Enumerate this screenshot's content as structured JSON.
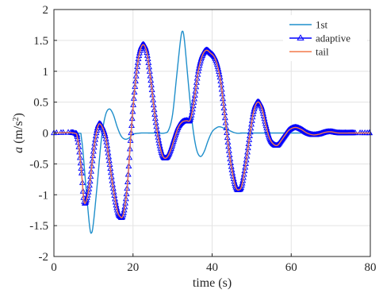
{
  "chart_data": {
    "type": "line",
    "xlabel": "time (s)",
    "ylabel_var": "a",
    "ylabel_unit_pre": " (m/s",
    "ylabel_unit_sup": "2",
    "ylabel_unit_post": ")",
    "xlim": [
      0,
      80
    ],
    "ylim": [
      -2,
      2
    ],
    "xticks": [
      0,
      20,
      40,
      60,
      80
    ],
    "yticks": [
      -2,
      -1.5,
      -1,
      -0.5,
      0,
      0.5,
      1,
      1.5,
      2
    ],
    "ytick_labels": [
      "-2",
      "-1.5",
      "-1",
      "-0.5",
      "0",
      "0.5",
      "1",
      "1.5",
      "2"
    ],
    "grid": true,
    "legend_position": "top-right",
    "series": [
      {
        "name": "1st",
        "color": "#1f8fcb",
        "marker": "none",
        "x": [
          0,
          6,
          7,
          8,
          9,
          9.5,
          10,
          11,
          12,
          13,
          14,
          15,
          16,
          17,
          18,
          19,
          20,
          22,
          24,
          26,
          28,
          29,
          30,
          31,
          32,
          32.5,
          33,
          34,
          35,
          36,
          37,
          38,
          39,
          40,
          41,
          42,
          44,
          46,
          48,
          50,
          80
        ],
        "y": [
          0,
          0,
          -0.1,
          -0.8,
          -1.5,
          -1.62,
          -1.45,
          -0.8,
          -0.1,
          0.28,
          0.39,
          0.3,
          0.1,
          -0.05,
          -0.1,
          -0.08,
          -0.02,
          0,
          0,
          0,
          0,
          0.05,
          0.3,
          0.9,
          1.5,
          1.65,
          1.5,
          0.8,
          0.15,
          -0.25,
          -0.38,
          -0.3,
          -0.12,
          0.02,
          0.08,
          0.1,
          0.05,
          0,
          0,
          0,
          0
        ]
      },
      {
        "name": "adaptive",
        "color": "#0000ff",
        "marker": "triangle",
        "x": [
          0,
          5,
          6,
          7,
          7.5,
          8,
          9,
          10,
          11,
          11.8,
          13,
          14,
          15,
          16,
          16.7,
          17.5,
          18.5,
          19.5,
          20.5,
          21.5,
          22.5,
          23.5,
          24.5,
          25.5,
          26.5,
          27.5,
          28.5,
          29.5,
          30.5,
          31.5,
          32.5,
          33.5,
          34.5,
          35.5,
          36.5,
          37.5,
          38.5,
          39.5,
          40.8,
          42,
          43,
          44,
          45,
          46,
          46.8,
          47.5,
          48.5,
          49.5,
          50.5,
          51.5,
          52.5,
          53.5,
          54.5,
          55.5,
          56.5,
          57.5,
          58.5,
          59.5,
          61,
          62.5,
          64,
          65.5,
          67,
          68.5,
          70,
          72,
          75,
          80
        ],
        "y": [
          0,
          0,
          -0.1,
          -0.65,
          -1.05,
          -1.13,
          -0.85,
          -0.3,
          0.08,
          0.14,
          -0.05,
          -0.45,
          -0.9,
          -1.25,
          -1.35,
          -1.33,
          -0.9,
          0,
          0.75,
          1.25,
          1.43,
          1.3,
          0.85,
          0.3,
          -0.12,
          -0.37,
          -0.4,
          -0.28,
          -0.08,
          0.1,
          0.18,
          0.2,
          0.22,
          0.55,
          1.0,
          1.25,
          1.34,
          1.3,
          1.2,
          0.9,
          0.4,
          -0.15,
          -0.6,
          -0.88,
          -0.92,
          -0.85,
          -0.5,
          -0.05,
          0.35,
          0.5,
          0.42,
          0.15,
          -0.08,
          -0.18,
          -0.2,
          -0.12,
          -0.03,
          0.05,
          0.09,
          0.06,
          0,
          -0.03,
          -0.02,
          0.01,
          0.02,
          0,
          0,
          0
        ]
      },
      {
        "name": "tail",
        "color": "#f4794a",
        "marker": "none",
        "x": [
          0,
          5,
          6,
          7,
          7.5,
          8,
          9,
          10,
          11,
          11.8,
          13,
          14,
          15,
          16,
          16.7,
          17.5,
          18.5,
          19.5,
          20.5,
          21.5,
          22.5,
          23.5,
          24.5,
          25.5,
          26.5,
          27.5,
          28.5,
          29.5,
          30.5,
          31.5,
          32.5,
          33.5,
          34.5,
          35.5,
          36.5,
          37.5,
          38.5,
          39.5,
          40.8,
          42,
          43,
          44,
          45,
          46,
          46.8,
          47.5,
          48.5,
          49.5,
          50.5,
          51.5,
          52.5,
          53.5,
          54.5,
          55.5,
          56.5,
          57.5,
          58.5,
          59.5,
          61,
          62.5,
          64,
          65.5,
          67,
          68.5,
          70,
          72,
          75,
          80
        ],
        "y": [
          0,
          0,
          -0.1,
          -0.65,
          -1.05,
          -1.13,
          -0.85,
          -0.3,
          0.08,
          0.14,
          -0.05,
          -0.45,
          -0.9,
          -1.25,
          -1.35,
          -1.33,
          -0.9,
          0,
          0.75,
          1.25,
          1.43,
          1.3,
          0.85,
          0.3,
          -0.12,
          -0.37,
          -0.4,
          -0.28,
          -0.08,
          0.1,
          0.18,
          0.2,
          0.22,
          0.55,
          1.0,
          1.25,
          1.34,
          1.3,
          1.2,
          0.9,
          0.4,
          -0.15,
          -0.6,
          -0.88,
          -0.92,
          -0.85,
          -0.5,
          -0.05,
          0.35,
          0.5,
          0.42,
          0.15,
          -0.08,
          -0.18,
          -0.2,
          -0.12,
          -0.03,
          0.05,
          0.09,
          0.06,
          0,
          -0.03,
          -0.02,
          0.01,
          0.02,
          0,
          0,
          0
        ]
      }
    ]
  }
}
